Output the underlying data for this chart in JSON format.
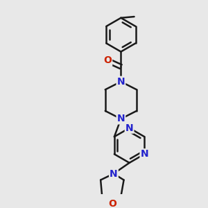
{
  "background_color": "#e8e8e8",
  "bond_color": "#1a1a1a",
  "nitrogen_color": "#2222cc",
  "oxygen_color": "#cc2200",
  "line_width": 1.8,
  "font_size_N": 10,
  "font_size_O": 10,
  "figsize": [
    3.0,
    3.0
  ],
  "dpi": 100,
  "xlim": [
    -2.5,
    3.5
  ],
  "ylim": [
    -4.0,
    4.0
  ]
}
